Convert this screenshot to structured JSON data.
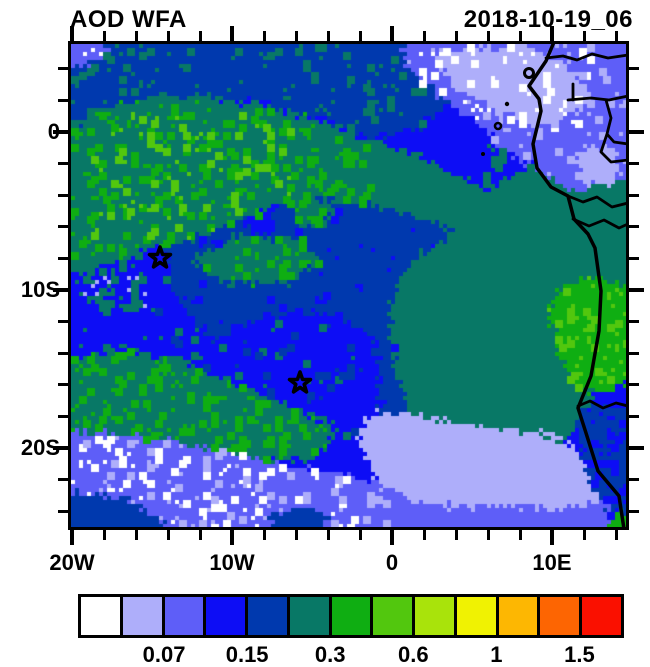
{
  "title": "AOD WFA",
  "timestamp": "2018-10-19_06",
  "axes": {
    "x_tick_labels": [
      "20W",
      "10W",
      "0",
      "10E"
    ],
    "y_tick_labels": [
      "0",
      "10S",
      "20S"
    ]
  },
  "colorbar": {
    "colors": [
      "#FFFFFF",
      "#AEAEFA",
      "#5E5EF8",
      "#0D0DF5",
      "#0039AE",
      "#087866",
      "#0FAE12",
      "#52C70E",
      "#A9E30B",
      "#F0F202",
      "#FDB702",
      "#FD6502",
      "#FA1000"
    ],
    "labels": [
      "0.07",
      "0.15",
      "0.3",
      "0.6",
      "1",
      "1.5"
    ]
  },
  "chart_data": {
    "type": "heatmap",
    "title": "AOD WFA",
    "timestamp": "2018-10-19_06",
    "subtype": "filled-contour aerosol optical depth map, SE Atlantic / Gulf of Guinea with African coastline and country borders",
    "x_ticks": [
      "20W",
      "10W",
      "0",
      "10E"
    ],
    "y_ticks": [
      "0",
      "10S",
      "20S"
    ],
    "lon_range": [
      "20W",
      "15E"
    ],
    "lat_range": [
      "5N",
      "25S"
    ],
    "minor_tick_interval_deg": 2,
    "grid": false,
    "legend_position": "bottom colorbar",
    "colorbar_boundary_labels": [
      "0.07",
      "0.15",
      "0.3",
      "0.6",
      "1",
      "1.5"
    ],
    "colorbar_colors": [
      "#FFFFFF",
      "#AEAEFA",
      "#5E5EF8",
      "#0D0DF5",
      "#0039AE",
      "#087866",
      "#0FAE12",
      "#52C70E",
      "#A9E30B",
      "#F0F202",
      "#FDB702",
      "#FD6502",
      "#FA1000"
    ],
    "markers": [
      {
        "symbol": "star",
        "lon": "14.5W",
        "lat": "8S"
      },
      {
        "symbol": "star",
        "lon": "5.7W",
        "lat": "16S"
      }
    ],
    "field_regions": [
      {
        "area": "northwest quadrant (20W-5W, 2N-10S)",
        "aod": "0.2-0.4 speckled green over dark blue"
      },
      {
        "area": "northern band along 2N-5N",
        "aod": "0.15-0.2"
      },
      {
        "area": "northeast coastal sea (2E-10E, 0-5N)",
        "aod": "0.05-0.1 with patches below 0.05"
      },
      {
        "area": "central basin (12W-5E, 4S-13S)",
        "aod": "0.15-0.2 with 0.2-0.3 patches"
      },
      {
        "area": "around southern star (8W-2W, 14S-18S)",
        "aod": "0.1-0.15"
      },
      {
        "area": "southwest band (20W-3W, 15S-19S)",
        "aod": "0.2-0.3 speckled"
      },
      {
        "area": "far southwest (20W-5W, 19S-25S)",
        "aod": "0.07-0.1 with specks below 0.05"
      },
      {
        "area": "pale band toward Angola/Namibia coast (5W-12E, 17S-23S)",
        "aod": "0.05-0.07"
      },
      {
        "area": "Angola interior (11E-15E, 9S-14S)",
        "aod": "0.3-0.6"
      },
      {
        "area": "coastal corner (12E-15E, 22S-25S)",
        "aod": "0.3-0.6"
      }
    ]
  }
}
